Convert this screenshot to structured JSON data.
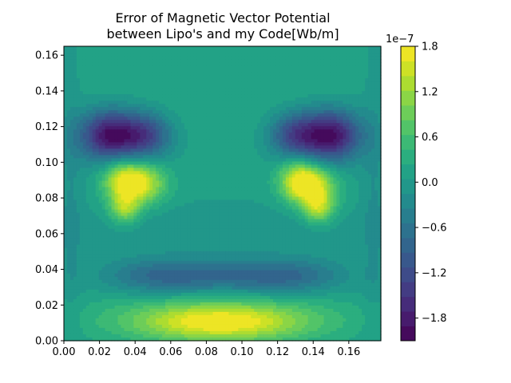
{
  "chart_data": {
    "type": "heatmap",
    "plot_kind": "filled-contour",
    "title_lines": [
      "Error of Magnetic Vector Potential",
      "between Lipo's and my Code[Wb/m]"
    ],
    "xlim": [
      0,
      0.178
    ],
    "ylim": [
      0,
      0.165
    ],
    "x_ticks": [
      0.0,
      0.02,
      0.04,
      0.06,
      0.08,
      0.1,
      0.12,
      0.14,
      0.16
    ],
    "x_tick_labels": [
      "0.00",
      "0.02",
      "0.04",
      "0.06",
      "0.08",
      "0.10",
      "0.12",
      "0.14",
      "0.16"
    ],
    "y_ticks": [
      0.0,
      0.02,
      0.04,
      0.06,
      0.08,
      0.1,
      0.12,
      0.14,
      0.16
    ],
    "y_tick_labels": [
      "0.00",
      "0.02",
      "0.04",
      "0.06",
      "0.08",
      "0.10",
      "0.12",
      "0.14",
      "0.16"
    ],
    "colormap": "viridis",
    "colorbar": {
      "range": [
        -2.1,
        1.8
      ],
      "levels": 20,
      "ticks": [
        -1.8,
        -1.2,
        -0.6,
        0.0,
        0.6,
        1.2,
        1.8
      ],
      "tick_labels": [
        "−1.8",
        "−1.2",
        "−0.6",
        "0.0",
        "0.6",
        "1.2",
        "1.8"
      ],
      "offset_text": "1e−7"
    },
    "background_value": 0.1,
    "features": [
      {
        "x": 0.026,
        "y": 0.115,
        "value": -2.05,
        "sx": 0.012,
        "sy": 0.01
      },
      {
        "x": 0.047,
        "y": 0.115,
        "value": -1.2,
        "sx": 0.01,
        "sy": 0.009
      },
      {
        "x": 0.15,
        "y": 0.115,
        "value": -2.05,
        "sx": 0.012,
        "sy": 0.01
      },
      {
        "x": 0.129,
        "y": 0.115,
        "value": -1.2,
        "sx": 0.01,
        "sy": 0.009
      },
      {
        "x": 0.033,
        "y": 0.09,
        "value": 1.35,
        "sx": 0.008,
        "sy": 0.008
      },
      {
        "x": 0.045,
        "y": 0.088,
        "value": 1.25,
        "sx": 0.009,
        "sy": 0.008
      },
      {
        "x": 0.034,
        "y": 0.074,
        "value": 1.1,
        "sx": 0.006,
        "sy": 0.006
      },
      {
        "x": 0.132,
        "y": 0.09,
        "value": 1.35,
        "sx": 0.008,
        "sy": 0.008
      },
      {
        "x": 0.141,
        "y": 0.086,
        "value": 1.2,
        "sx": 0.009,
        "sy": 0.008
      },
      {
        "x": 0.143,
        "y": 0.074,
        "value": 1.1,
        "sx": 0.006,
        "sy": 0.006
      },
      {
        "x": 0.09,
        "y": 0.036,
        "value": -0.8,
        "sx": 0.035,
        "sy": 0.007
      },
      {
        "x": 0.05,
        "y": 0.036,
        "value": -0.5,
        "sx": 0.02,
        "sy": 0.007
      },
      {
        "x": 0.13,
        "y": 0.036,
        "value": -0.5,
        "sx": 0.02,
        "sy": 0.007
      },
      {
        "x": 0.088,
        "y": 0.01,
        "value": 1.25,
        "sx": 0.032,
        "sy": 0.007
      },
      {
        "x": 0.088,
        "y": 0.013,
        "value": 0.6,
        "sx": 0.05,
        "sy": 0.01
      },
      {
        "x": 0.088,
        "y": 0.062,
        "value": -0.22,
        "sx": 0.07,
        "sy": 0.01
      },
      {
        "x": 0.004,
        "y": 0.08,
        "value": -0.25,
        "sx": 0.005,
        "sy": 0.06
      },
      {
        "x": 0.174,
        "y": 0.08,
        "value": -0.25,
        "sx": 0.005,
        "sy": 0.06
      },
      {
        "x": 0.088,
        "y": 0.14,
        "value": 0.12,
        "sx": 0.06,
        "sy": 0.02
      }
    ]
  }
}
